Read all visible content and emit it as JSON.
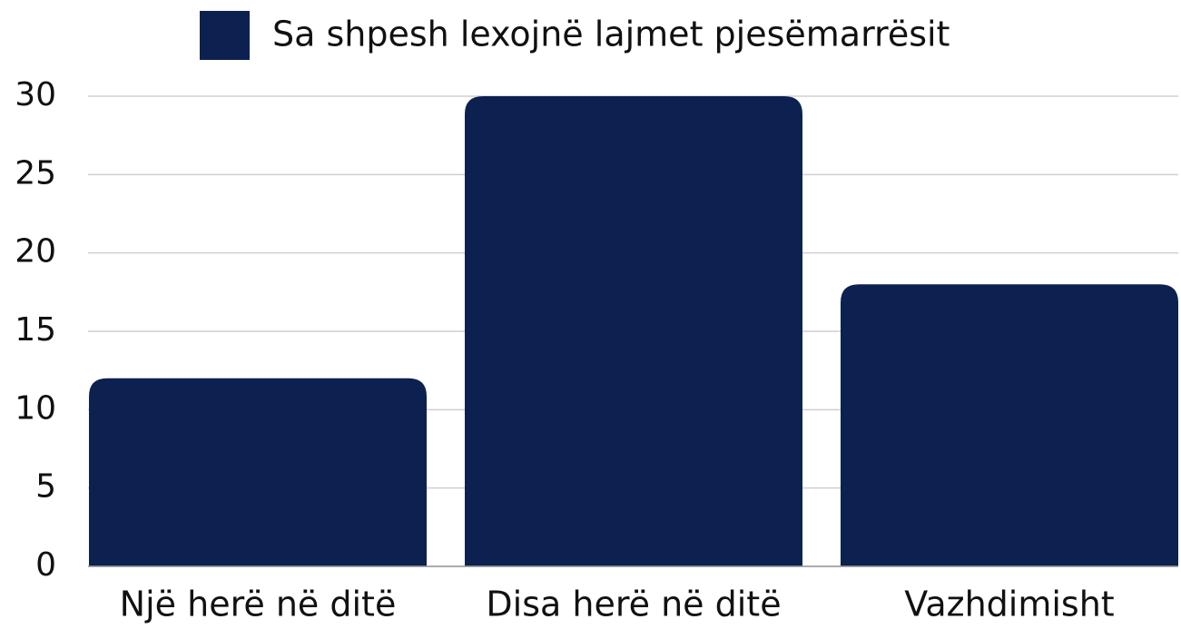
{
  "chart_data": {
    "type": "bar",
    "categories": [
      "Një herë në ditë",
      "Disa herë në ditë",
      "Vazhdimisht"
    ],
    "series": [
      {
        "name": "Sa shpesh lexojnë lajmet pjesëmarrësit",
        "color": "#0c2150",
        "values": [
          12,
          30,
          18
        ]
      }
    ],
    "ylim": [
      0,
      30
    ],
    "yticks": [
      0,
      5,
      10,
      15,
      20,
      25,
      30
    ],
    "grid": true,
    "legend": "top"
  }
}
